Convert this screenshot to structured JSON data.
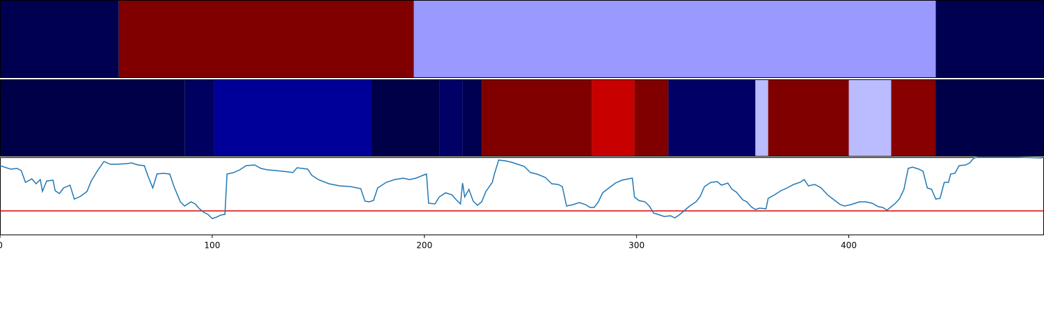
{
  "chart_data": [
    {
      "type": "strip",
      "x": [
        0,
        56,
        195,
        441,
        492
      ],
      "colors": [
        "#000050",
        "#800000",
        "#9999ff",
        "#000050"
      ]
    },
    {
      "type": "strip",
      "x": [
        0,
        87,
        101,
        175,
        207,
        218,
        227,
        279,
        299,
        315,
        356,
        362,
        400,
        420,
        441,
        492
      ],
      "colors": [
        "#000048",
        "#000060",
        "#000099",
        "#000048",
        "#000066",
        "#000050",
        "#800000",
        "#c80000",
        "#800000",
        "#000066",
        "#bbbbff",
        "#800000",
        "#bbbbff",
        "#880000",
        "#000048"
      ]
    },
    {
      "type": "line",
      "xlim": [
        0,
        492
      ],
      "xticks": [
        0,
        100,
        200,
        300,
        400
      ],
      "ylim": [
        0,
        112
      ],
      "color": "#1f77b4",
      "threshold": {
        "value": 35,
        "color": "#dd0000"
      },
      "x": [
        0,
        5,
        8,
        10,
        12,
        15,
        17,
        19,
        20,
        22,
        25,
        26,
        28,
        30,
        33,
        35,
        38,
        41,
        43,
        46,
        49,
        52,
        55,
        60,
        62,
        65,
        68,
        70,
        72,
        74,
        77,
        80,
        82,
        85,
        87,
        90,
        92,
        94,
        96,
        98,
        100,
        102,
        104,
        106,
        107,
        110,
        113,
        116,
        120,
        123,
        126,
        130,
        133,
        136,
        138,
        140,
        145,
        147,
        150,
        155,
        160,
        165,
        170,
        172,
        174,
        176,
        178,
        182,
        186,
        190,
        193,
        196,
        200,
        201,
        202,
        205,
        207,
        210,
        213,
        215,
        217,
        218,
        219,
        221,
        223,
        225,
        227,
        229,
        232,
        233,
        235,
        238,
        241,
        244,
        247,
        250,
        253,
        257,
        260,
        263,
        265,
        267,
        270,
        273,
        276,
        278,
        280,
        282,
        284,
        287,
        290,
        293,
        296,
        298,
        299,
        301,
        304,
        306,
        308,
        310,
        313,
        316,
        318,
        320,
        322,
        325,
        328,
        330,
        332,
        335,
        338,
        340,
        343,
        345,
        347,
        350,
        352,
        354,
        356,
        358,
        361,
        362,
        365,
        368,
        371,
        374,
        377,
        379,
        381,
        384,
        387,
        390,
        393,
        396,
        398,
        401,
        403,
        405,
        408,
        411,
        414,
        416,
        418,
        420,
        422,
        424,
        426,
        428,
        430,
        433,
        435,
        437,
        439,
        441,
        443,
        445,
        447,
        448,
        450,
        452,
        455,
        457,
        459,
        461,
        470,
        480,
        491
      ],
      "values": [
        100,
        95,
        96,
        93,
        76,
        81,
        74,
        80,
        63,
        78,
        79,
        64,
        60,
        68,
        72,
        52,
        56,
        63,
        78,
        93,
        106,
        102,
        102,
        103,
        104,
        101,
        100,
        83,
        68,
        88,
        89,
        88,
        70,
        48,
        42,
        48,
        45,
        38,
        33,
        30,
        24,
        26,
        29,
        30,
        88,
        90,
        94,
        100,
        101,
        96,
        94,
        93,
        92,
        91,
        90,
        97,
        95,
        86,
        80,
        74,
        71,
        70,
        67,
        49,
        48,
        50,
        68,
        76,
        80,
        82,
        80,
        82,
        87,
        88,
        46,
        45,
        55,
        61,
        58,
        51,
        45,
        75,
        55,
        66,
        49,
        43,
        48,
        63,
        76,
        88,
        108,
        107,
        105,
        102,
        99,
        90,
        88,
        83,
        74,
        73,
        70,
        42,
        44,
        47,
        44,
        40,
        40,
        48,
        61,
        68,
        75,
        79,
        81,
        82,
        55,
        50,
        48,
        42,
        32,
        30,
        27,
        28,
        25,
        29,
        34,
        42,
        48,
        56,
        70,
        76,
        77,
        72,
        75,
        66,
        62,
        51,
        48,
        41,
        37,
        39,
        38,
        53,
        58,
        64,
        68,
        73,
        76,
        80,
        71,
        73,
        68,
        58,
        51,
        44,
        42,
        44,
        46,
        48,
        48,
        46,
        41,
        40,
        36,
        41,
        46,
        53,
        66,
        96,
        98,
        95,
        92,
        68,
        66,
        52,
        53,
        76,
        76,
        88,
        89,
        100,
        101,
        104,
        111,
        112,
        112,
        112,
        111
      ]
    }
  ]
}
